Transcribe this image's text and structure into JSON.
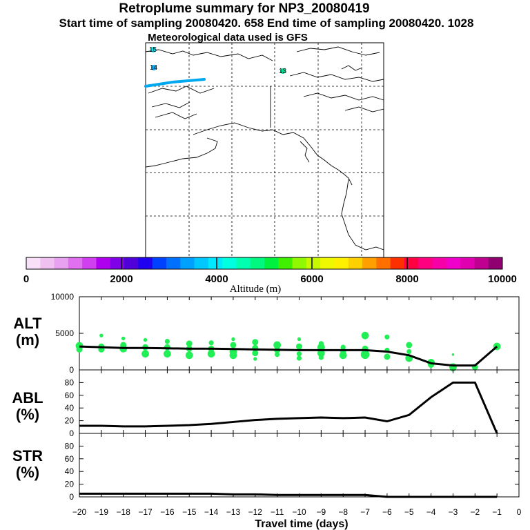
{
  "header": {
    "title": "Retroplume summary for NP3_20080419",
    "subtitle": "Start time of sampling 20080420.   658     End time of sampling 20080420.  1028",
    "met": "Meteorological data used is GFS"
  },
  "map": {
    "markers": [
      {
        "label": "15",
        "color": "#00e8f0"
      },
      {
        "label": "14",
        "color": "#00b0ff"
      },
      {
        "label": "13",
        "color": "#00e090"
      }
    ]
  },
  "colorbar": {
    "title": "Altitude (m)",
    "tick_labels": [
      "0",
      "2000",
      "4000",
      "6000",
      "8000",
      "10000"
    ],
    "colors": [
      "#f8e0f8",
      "#f0c0f0",
      "#e8a0f0",
      "#e070f0",
      "#d040f0",
      "#b000f0",
      "#8000e8",
      "#5000d8",
      "#2000f0",
      "#0040ff",
      "#0070ff",
      "#00a0ff",
      "#00c8ff",
      "#00e8ff",
      "#00ffe0",
      "#00ffb0",
      "#00f880",
      "#00f040",
      "#40f000",
      "#90f800",
      "#c8f800",
      "#f0f800",
      "#fff000",
      "#ffd000",
      "#ffa000",
      "#ff7000",
      "#ff3000",
      "#ff0040",
      "#ff0080",
      "#f800a8",
      "#f000c8",
      "#e000b0",
      "#c00090",
      "#900070"
    ]
  },
  "chart_data": [
    {
      "type": "scatter",
      "name": "altitude",
      "ylabel": "ALT\n(m)",
      "ylim": [
        0,
        10000
      ],
      "yticks": [
        0,
        5000,
        10000
      ],
      "ytick_labels": [
        "0",
        "5000",
        "10000"
      ],
      "x": [
        -20,
        -19,
        -18,
        -17,
        -16,
        -15,
        -14,
        -13,
        -12,
        -11,
        -10,
        -9,
        -8,
        -7,
        -6,
        -5,
        -4,
        -3,
        -2,
        -1
      ],
      "median_line": [
        3200,
        3100,
        3000,
        3000,
        2950,
        2900,
        2900,
        2850,
        2800,
        2750,
        2700,
        2700,
        2700,
        2700,
        2500,
        2000,
        900,
        600,
        600,
        3200
      ],
      "points": [
        [
          -20,
          3300,
          6
        ],
        [
          -20,
          2800,
          5
        ],
        [
          -19,
          4700,
          3
        ],
        [
          -19,
          3200,
          5
        ],
        [
          -19,
          2800,
          5
        ],
        [
          -18,
          4300,
          3
        ],
        [
          -18,
          3400,
          5
        ],
        [
          -18,
          2900,
          6
        ],
        [
          -17,
          4100,
          3
        ],
        [
          -17,
          3100,
          5
        ],
        [
          -17,
          2200,
          6
        ],
        [
          -16,
          3900,
          4
        ],
        [
          -16,
          3100,
          5
        ],
        [
          -16,
          2200,
          6
        ],
        [
          -15,
          3600,
          5
        ],
        [
          -15,
          2900,
          5
        ],
        [
          -15,
          2000,
          6
        ],
        [
          -14,
          3700,
          4
        ],
        [
          -14,
          2900,
          5
        ],
        [
          -14,
          2200,
          6
        ],
        [
          -13,
          4200,
          3
        ],
        [
          -13,
          3400,
          5
        ],
        [
          -13,
          2500,
          6
        ],
        [
          -13,
          2000,
          6
        ],
        [
          -12,
          3800,
          5
        ],
        [
          -12,
          3000,
          5
        ],
        [
          -12,
          2300,
          5
        ],
        [
          -12,
          1500,
          3
        ],
        [
          -11,
          3400,
          6
        ],
        [
          -11,
          2700,
          5
        ],
        [
          -11,
          2100,
          4
        ],
        [
          -10,
          4200,
          3
        ],
        [
          -10,
          3200,
          5
        ],
        [
          -10,
          2200,
          4
        ],
        [
          -10,
          1600,
          4
        ],
        [
          -9,
          3600,
          4
        ],
        [
          -9,
          3100,
          6
        ],
        [
          -9,
          2300,
          6
        ],
        [
          -9,
          1700,
          4
        ],
        [
          -8,
          3100,
          4
        ],
        [
          -8,
          2600,
          5
        ],
        [
          -8,
          2000,
          6
        ],
        [
          -7,
          4700,
          6
        ],
        [
          -7,
          2900,
          5
        ],
        [
          -7,
          2100,
          7
        ],
        [
          -6,
          4500,
          4
        ],
        [
          -6,
          2700,
          4
        ],
        [
          -6,
          1800,
          5
        ],
        [
          -5,
          3400,
          5
        ],
        [
          -5,
          2500,
          4
        ],
        [
          -5,
          1600,
          6
        ],
        [
          -4,
          1000,
          6
        ],
        [
          -4,
          700,
          5
        ],
        [
          -3,
          2100,
          2
        ],
        [
          -3,
          400,
          6
        ],
        [
          -3,
          200,
          5
        ],
        [
          -2,
          600,
          2
        ],
        [
          -2,
          400,
          5
        ],
        [
          -1,
          3200,
          6
        ]
      ]
    },
    {
      "type": "line",
      "name": "abl",
      "ylabel": "ABL\n(%)",
      "ylim": [
        0,
        100
      ],
      "yticks": [
        0,
        20,
        40,
        60,
        80
      ],
      "ytick_labels": [
        "0",
        "20",
        "40",
        "60",
        "80"
      ],
      "x": [
        -20,
        -19,
        -18,
        -17,
        -16,
        -15,
        -14,
        -13,
        -12,
        -11,
        -10,
        -9,
        -8,
        -7,
        -6,
        -5,
        -4,
        -3,
        -2,
        -1
      ],
      "values": [
        12,
        12,
        11,
        11,
        12,
        13,
        15,
        18,
        21,
        23,
        24,
        25,
        24,
        25,
        19,
        29,
        57,
        80,
        80,
        0
      ]
    },
    {
      "type": "line",
      "name": "str",
      "ylabel": "STR\n(%)",
      "ylim": [
        0,
        100
      ],
      "yticks": [
        0,
        20,
        40,
        60,
        80
      ],
      "ytick_labels": [
        "0",
        "20",
        "40",
        "60",
        "80"
      ],
      "x": [
        -20,
        -19,
        -18,
        -17,
        -16,
        -15,
        -14,
        -13,
        -12,
        -11,
        -10,
        -9,
        -8,
        -7,
        -6,
        -5,
        -4,
        -3,
        -2,
        -1
      ],
      "values": [
        5,
        5,
        5,
        5,
        5,
        5,
        5,
        4,
        4,
        3,
        3,
        3,
        3,
        3,
        0,
        0,
        0,
        0,
        0,
        0
      ]
    }
  ],
  "xaxis": {
    "label": "Travel time (days)",
    "xlim": [
      -20,
      0
    ],
    "tick_labels": [
      "−20",
      "−19",
      "−18",
      "−17",
      "−16",
      "−15",
      "−14",
      "−13",
      "−12",
      "−11",
      "−10",
      "−9",
      "−8",
      "−7",
      "−6",
      "−5",
      "−4",
      "−3",
      "−2",
      "−1",
      "0"
    ]
  }
}
